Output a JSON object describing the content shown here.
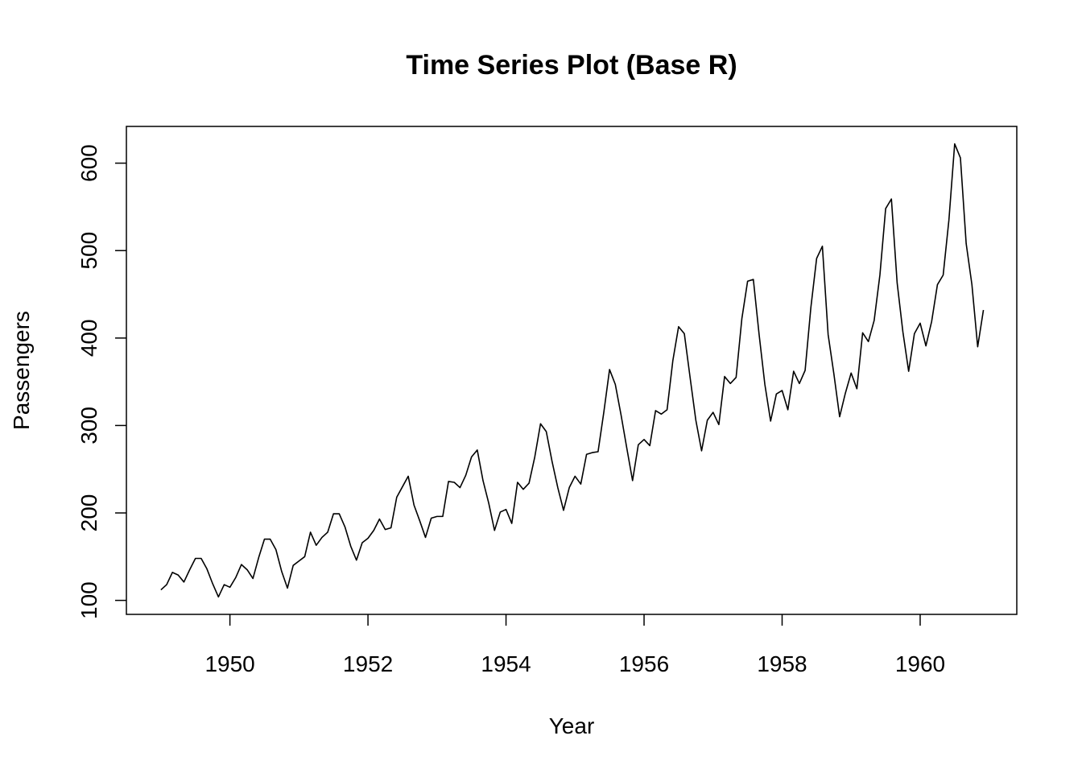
{
  "chart_data": {
    "type": "line",
    "title": "Time Series Plot (Base R)",
    "xlabel": "Year",
    "ylabel": "Passengers",
    "xlim": [
      1948.5,
      1961.4
    ],
    "ylim": [
      84,
      642
    ],
    "grid": false,
    "legend": "none",
    "x_start": 1949,
    "frequency": 12,
    "x_ticks": [
      1950,
      1952,
      1954,
      1956,
      1958,
      1960
    ],
    "x_tick_labels": [
      "1950",
      "1952",
      "1954",
      "1956",
      "1958",
      "1960"
    ],
    "y_ticks": [
      100,
      200,
      300,
      400,
      500,
      600
    ],
    "y_tick_labels": [
      "100",
      "200",
      "300",
      "400",
      "500",
      "600"
    ],
    "series": [
      {
        "values": [
          112,
          118,
          132,
          129,
          121,
          135,
          148,
          148,
          136,
          119,
          104,
          118,
          115,
          126,
          141,
          135,
          125,
          149,
          170,
          170,
          158,
          133,
          114,
          140,
          145,
          150,
          178,
          163,
          172,
          178,
          199,
          199,
          184,
          162,
          146,
          166,
          171,
          180,
          193,
          181,
          183,
          218,
          230,
          242,
          209,
          191,
          172,
          194,
          196,
          196,
          236,
          235,
          229,
          243,
          264,
          272,
          237,
          211,
          180,
          201,
          204,
          188,
          235,
          227,
          234,
          264,
          302,
          293,
          259,
          229,
          203,
          229,
          242,
          233,
          267,
          269,
          270,
          315,
          364,
          347,
          312,
          274,
          237,
          278,
          284,
          277,
          317,
          313,
          318,
          374,
          413,
          405,
          355,
          306,
          271,
          306,
          315,
          301,
          356,
          348,
          355,
          422,
          465,
          467,
          404,
          347,
          305,
          336,
          340,
          318,
          362,
          348,
          363,
          435,
          491,
          505,
          404,
          359,
          310,
          337,
          360,
          342,
          406,
          396,
          420,
          472,
          548,
          559,
          463,
          407,
          362,
          405,
          417,
          391,
          419,
          461,
          472,
          535,
          622,
          606,
          508,
          461,
          390,
          432
        ]
      }
    ]
  }
}
